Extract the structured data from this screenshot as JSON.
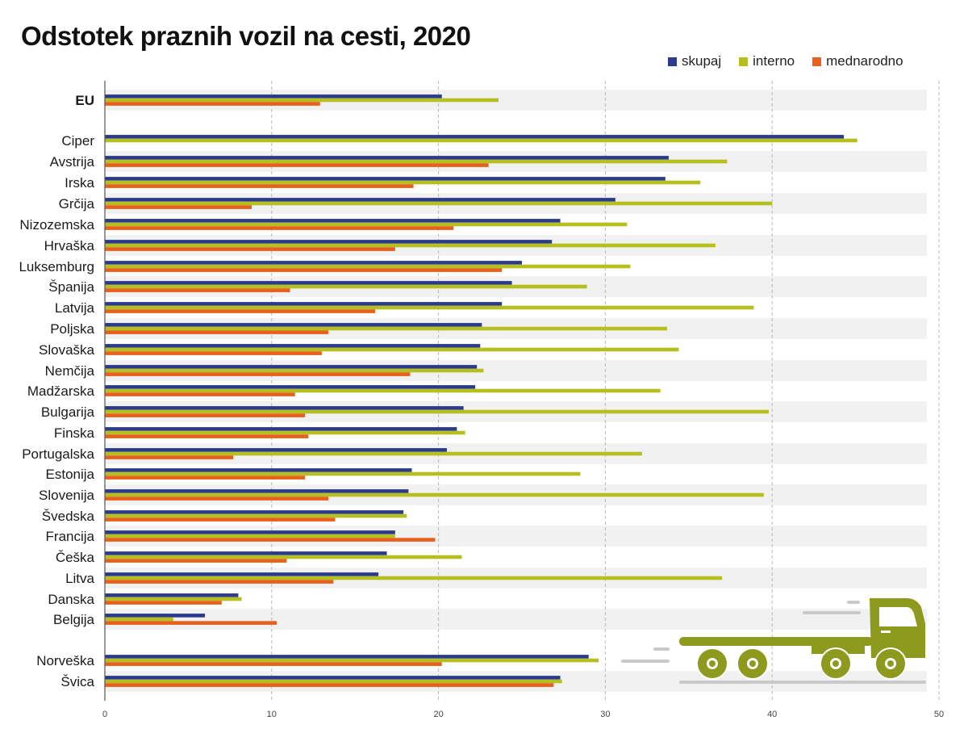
{
  "chart_data": {
    "type": "bar",
    "orientation": "horizontal",
    "title": "Odstotek praznih vozil na cesti, 2020",
    "xlabel": "",
    "ylabel": "",
    "xlim": [
      0,
      50
    ],
    "x_ticks": [
      "0",
      "10",
      "20",
      "30",
      "40",
      "50"
    ],
    "grid": true,
    "legend_position": "top-right",
    "colors": {
      "skupaj": "#2b3a8c",
      "interno": "#b5bf1f",
      "mednarodno": "#e8601c"
    },
    "legend": [
      "skupaj",
      "interno",
      "mednarodno"
    ],
    "categories": [
      "EU",
      "Ciper",
      "Avstrija",
      "Irska",
      "Grčija",
      "Nizozemska",
      "Hrvaška",
      "Luksemburg",
      "Španija",
      "Latvija",
      "Poljska",
      "Slovaška",
      "Nemčija",
      "Madžarska",
      "Bulgarija",
      "Finska",
      "Portugalska",
      "Estonija",
      "Slovenija",
      "Švedska",
      "Francija",
      "Češka",
      "Litva",
      "Danska",
      "Belgija",
      "Norveška",
      "Švica"
    ],
    "series": [
      {
        "name": "skupaj",
        "values": [
          20.2,
          44.3,
          33.8,
          33.6,
          30.6,
          27.3,
          26.8,
          25.0,
          24.4,
          23.8,
          22.6,
          22.5,
          22.3,
          22.2,
          21.5,
          21.1,
          20.5,
          18.4,
          18.2,
          17.9,
          17.4,
          16.9,
          16.4,
          8.0,
          6.0,
          29.0,
          27.3
        ]
      },
      {
        "name": "interno",
        "values": [
          23.6,
          45.1,
          37.3,
          35.7,
          40.0,
          31.3,
          36.6,
          31.5,
          28.9,
          38.9,
          33.7,
          34.4,
          22.7,
          33.3,
          39.8,
          21.6,
          32.2,
          28.5,
          39.5,
          18.1,
          17.4,
          21.4,
          37.0,
          8.2,
          4.1,
          29.6,
          27.4
        ]
      },
      {
        "name": "mednarodno",
        "values": [
          12.9,
          null,
          23.0,
          18.5,
          8.8,
          20.9,
          17.4,
          23.8,
          11.1,
          16.2,
          13.4,
          13.0,
          18.3,
          11.4,
          12.0,
          12.2,
          7.7,
          12.0,
          13.4,
          13.8,
          19.8,
          10.9,
          13.7,
          7.0,
          10.3,
          20.2,
          26.9
        ]
      }
    ]
  }
}
